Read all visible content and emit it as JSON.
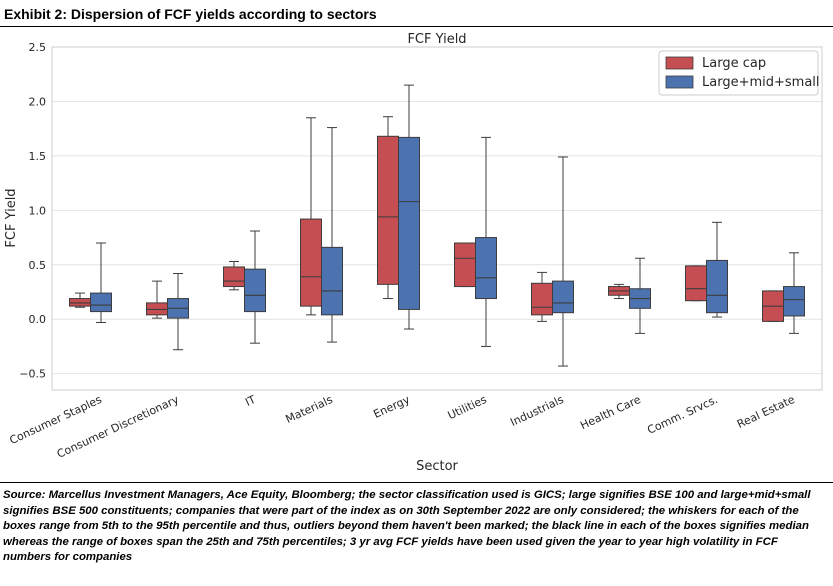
{
  "exhibit": {
    "title": "Exhibit 2: Dispersion of FCF yields according to sectors",
    "source_note": "Source: Marcellus Investment Managers, Ace Equity, Bloomberg; the sector classification used is GICS; large signifies BSE 100 and large+mid+small signifies BSE 500 constituents; companies that were part of the index as on 30th September 2022 are only considered; the whiskers for each of the boxes range from 5th to the 95th percentile and thus, outliers beyond them haven't been marked; the black line in each of the boxes signifies median whereas the range of boxes span the 25th and 75th percentiles; 3 yr avg FCF yields have been used given the year to year high volatility in FCF numbers for companies"
  },
  "chart_data": {
    "type": "box",
    "title": "FCF Yield",
    "xlabel": "Sector",
    "ylabel": "FCF Yield",
    "ylim": [
      -0.65,
      2.5
    ],
    "yticks": [
      -0.5,
      0.0,
      0.5,
      1.0,
      1.5,
      2.0,
      2.5
    ],
    "ytick_labels": [
      "−0.5",
      "0.0",
      "0.5",
      "1.0",
      "1.5",
      "2.0",
      "2.5"
    ],
    "grid": true,
    "legend_position": "top-right",
    "categories": [
      "Consumer Staples",
      "Consumer Discretionary",
      "IT",
      "Materials",
      "Energy",
      "Utilities",
      "Industrials",
      "Health Care",
      "Comm. Srvcs.",
      "Real Estate"
    ],
    "series": [
      {
        "name": "Large cap",
        "color": "#c44e52",
        "boxes": [
          {
            "whislo": 0.11,
            "q1": 0.12,
            "med": 0.15,
            "q3": 0.19,
            "whishi": 0.24
          },
          {
            "whislo": 0.01,
            "q1": 0.04,
            "med": 0.09,
            "q3": 0.15,
            "whishi": 0.35
          },
          {
            "whislo": 0.27,
            "q1": 0.3,
            "med": 0.35,
            "q3": 0.48,
            "whishi": 0.53
          },
          {
            "whislo": 0.04,
            "q1": 0.12,
            "med": 0.39,
            "q3": 0.92,
            "whishi": 1.85
          },
          {
            "whislo": 0.19,
            "q1": 0.32,
            "med": 0.94,
            "q3": 1.68,
            "whishi": 1.86
          },
          {
            "whislo": 0.3,
            "q1": 0.3,
            "med": 0.56,
            "q3": 0.7,
            "whishi": 0.7
          },
          {
            "whislo": -0.02,
            "q1": 0.04,
            "med": 0.11,
            "q3": 0.33,
            "whishi": 0.43
          },
          {
            "whislo": 0.19,
            "q1": 0.22,
            "med": 0.26,
            "q3": 0.3,
            "whishi": 0.32
          },
          {
            "whislo": 0.17,
            "q1": 0.17,
            "med": 0.28,
            "q3": 0.49,
            "whishi": 0.49
          },
          {
            "whislo": -0.02,
            "q1": -0.02,
            "med": 0.12,
            "q3": 0.26,
            "whishi": 0.26
          }
        ]
      },
      {
        "name": "Large+mid+small",
        "color": "#4c72b0",
        "boxes": [
          {
            "whislo": -0.03,
            "q1": 0.07,
            "med": 0.13,
            "q3": 0.24,
            "whishi": 0.7
          },
          {
            "whislo": -0.28,
            "q1": 0.01,
            "med": 0.1,
            "q3": 0.19,
            "whishi": 0.42
          },
          {
            "whislo": -0.22,
            "q1": 0.07,
            "med": 0.22,
            "q3": 0.46,
            "whishi": 0.81
          },
          {
            "whislo": -0.21,
            "q1": 0.04,
            "med": 0.26,
            "q3": 0.66,
            "whishi": 1.76
          },
          {
            "whislo": -0.09,
            "q1": 0.09,
            "med": 1.08,
            "q3": 1.67,
            "whishi": 2.15
          },
          {
            "whislo": -0.25,
            "q1": 0.19,
            "med": 0.38,
            "q3": 0.75,
            "whishi": 1.67
          },
          {
            "whislo": -0.43,
            "q1": 0.06,
            "med": 0.15,
            "q3": 0.35,
            "whishi": 1.49
          },
          {
            "whislo": -0.13,
            "q1": 0.1,
            "med": 0.19,
            "q3": 0.28,
            "whishi": 0.56
          },
          {
            "whislo": 0.02,
            "q1": 0.06,
            "med": 0.22,
            "q3": 0.54,
            "whishi": 0.89
          },
          {
            "whislo": -0.13,
            "q1": 0.03,
            "med": 0.18,
            "q3": 0.3,
            "whishi": 0.61
          }
        ]
      }
    ]
  }
}
